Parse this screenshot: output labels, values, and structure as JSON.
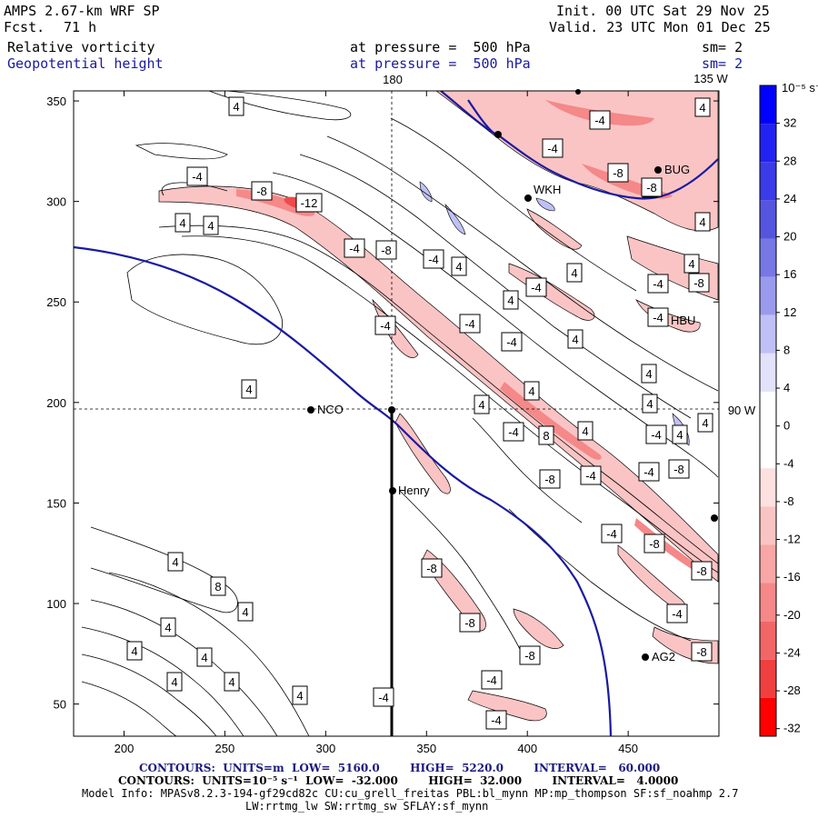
{
  "header": {
    "model": "AMPS 2.67-km WRF SP",
    "forecast_label": "Fcst.",
    "forecast_hours": "71 h",
    "init": "Init. 00 UTC Sat 29 Nov 25",
    "valid": "Valid. 23 UTC Mon 01 Dec 25",
    "field1_name": "Relative vorticity",
    "field1_level": "at pressure =  500 hPa",
    "field1_smooth": "sm= 2",
    "field2_name": "Geopotential height",
    "field2_level": "at pressure =  500 hPa",
    "field2_smooth": "sm= 2"
  },
  "map": {
    "x_ticks": [
      "200",
      "250",
      "300",
      "350",
      "400",
      "450"
    ],
    "y_ticks": [
      "350",
      "300",
      "250",
      "200",
      "150",
      "100",
      "50"
    ],
    "meridian_top_label": "180",
    "meridian_right_top_label": "135 W",
    "meridian_right_mid_label": "90 W",
    "stations": [
      {
        "name": "NCO"
      },
      {
        "name": "Henry"
      },
      {
        "name": "HBU"
      },
      {
        "name": "AG2"
      },
      {
        "name": "BUG"
      },
      {
        "name": "WKH"
      }
    ],
    "contour_labels": [
      "4",
      "-4",
      "4",
      "4",
      "-8",
      "-12",
      "-4",
      "-8",
      "-4",
      "4",
      "4",
      "-4",
      "4",
      "-4",
      "4",
      "-4",
      "4",
      "-4",
      "-8",
      "-4",
      "4",
      "-4",
      "4",
      "4",
      "-4",
      "-4",
      "4",
      "4",
      "8",
      "4",
      "-4",
      "-8",
      "-4",
      "-4",
      "-8",
      "-8",
      "-8",
      "-8",
      "-8",
      "-4",
      "-4",
      "-8",
      "-4",
      "-4",
      "-8",
      "-4",
      "4",
      "4",
      "4",
      "4",
      "4",
      "8",
      "4",
      "4",
      "4",
      "4",
      "4",
      "4",
      "4",
      "-4",
      "-8",
      "4",
      "-8"
    ]
  },
  "colorbar": {
    "units": "10⁻⁵ s⁻¹",
    "ticks": [
      "32",
      "28",
      "24",
      "20",
      "16",
      "12",
      "8",
      "4",
      "0",
      "-4",
      "-8",
      "-12",
      "-16",
      "-20",
      "-24",
      "-28",
      "-32"
    ],
    "colors": [
      "#0000ff",
      "#2222f2",
      "#3b3be8",
      "#5555e0",
      "#7777e6",
      "#9a9aee",
      "#c0c0f6",
      "#e2e2fb",
      "#ffffff",
      "#ffffff",
      "#fde0e0",
      "#fbc4c4",
      "#f8a6a6",
      "#f58888",
      "#f26666",
      "#f03f3f",
      "#ff0000"
    ]
  },
  "footer": {
    "contours1": "CONTOURS:  UNITS=m  LOW=  5160.0        HIGH=  5220.0        INTERVAL=   60.000",
    "contours2": "CONTOURS:  UNITS=10⁻⁵ s⁻¹  LOW=  -32.000        HIGH=  32.000        INTERVAL=   4.0000",
    "model_info": "Model Info: MPASv8.2.3-194-gf29cd82c CU:cu_grell_freitas PBL:bl_mynn MP:mp_thompson SF:sf_noahmp 2.7",
    "model_info2": "LW:rrtmg_lw SW:rrtmg_sw SFLAY:sf_mynn"
  },
  "colors": {
    "height_contour": "#1a1aa0",
    "vort_positive": "#ff0000",
    "vort_negative": "#0000ff"
  }
}
